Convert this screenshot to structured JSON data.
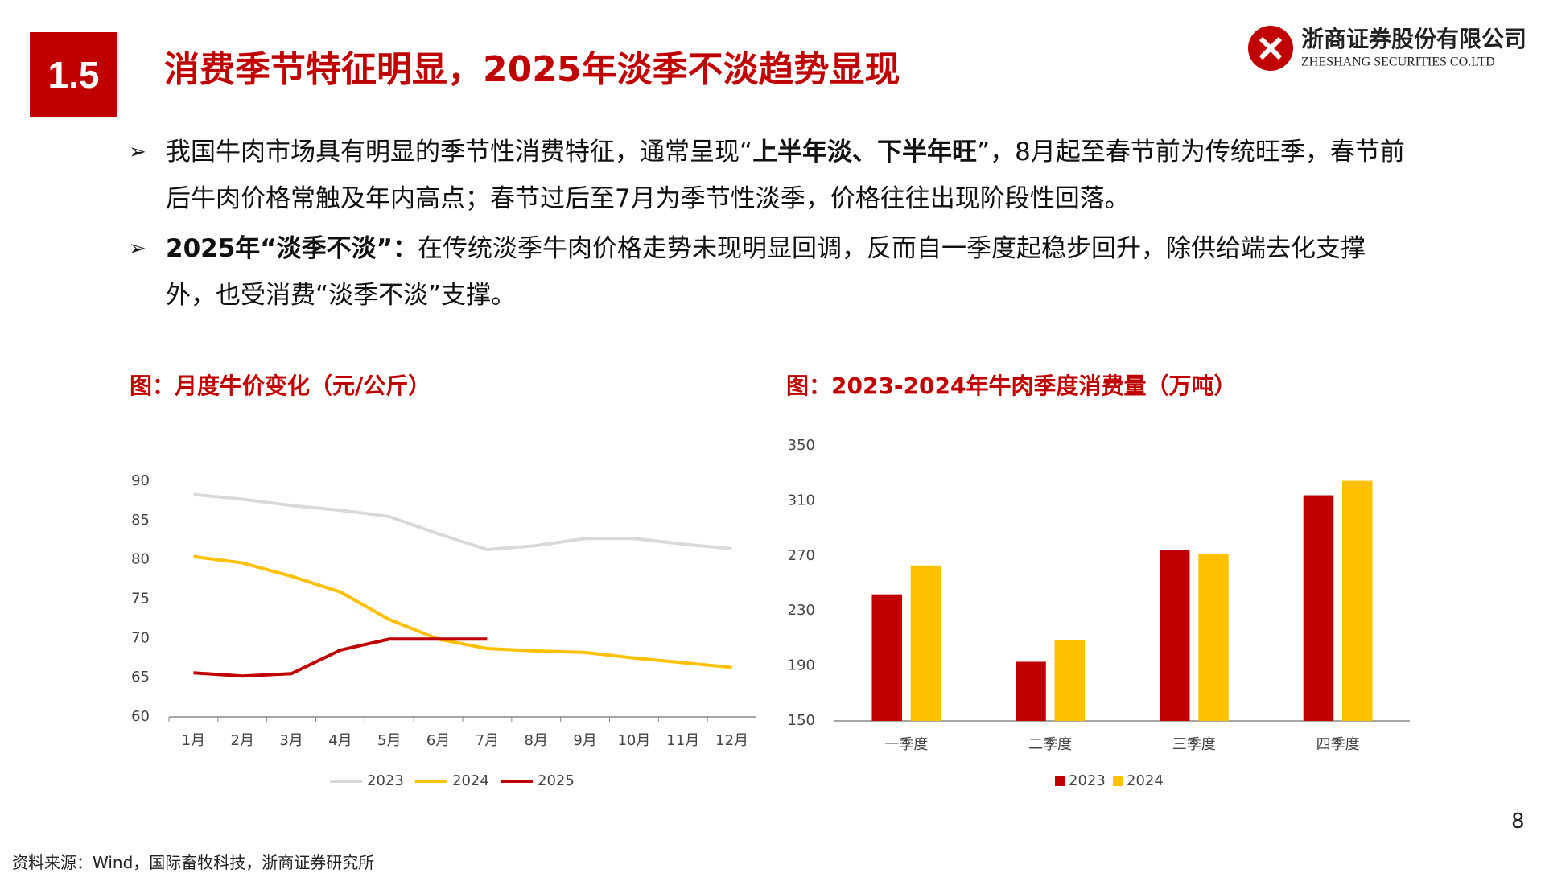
{
  "header": {
    "section": "1.5",
    "title": "消费季节特征明显，2025年淡季不淡趋势显现",
    "company": "浙商证券股份有限公司",
    "company_en": "ZHESHANG SECURITIES CO.LTD"
  },
  "bullets": [
    [
      {
        "text": "我国牛肉市场具有明显的季节性消费特征，通常呈现“"
      },
      {
        "text": "上半年淡、下半年旺",
        "bold": true
      },
      {
        "text": "”，8月起至春节前为传统旺季，春节前后牛肉价格常触及年内高点；春节过后至7月为季节性淡季，价格往往出现阶段性回落。"
      }
    ],
    [
      {
        "text": "2025年“淡季不淡”：",
        "bold": true
      },
      {
        "text": "在传统淡季牛肉价格走势未现明显回调，反而自一季度起稳步回升，除供给端去化支撑外，也受消费“淡季不淡”支撑。"
      }
    ]
  ],
  "chart_data": [
    {
      "type": "line",
      "title": "图：月度牛价变化（元/公斤）",
      "categories": [
        "1月",
        "2月",
        "3月",
        "4月",
        "5月",
        "6月",
        "7月",
        "8月",
        "9月",
        "10月",
        "11月",
        "12月"
      ],
      "series": [
        {
          "name": "2023",
          "color": "#d9d9d9",
          "values": [
            88.3,
            87.7,
            86.9,
            86.3,
            85.5,
            83.3,
            81.3,
            81.8,
            82.7,
            82.7,
            82.0,
            81.4
          ]
        },
        {
          "name": "2024",
          "color": "#ffc000",
          "values": [
            80.4,
            79.6,
            77.9,
            75.9,
            72.4,
            69.9,
            68.7,
            68.4,
            68.2,
            67.5,
            66.9,
            66.3
          ]
        },
        {
          "name": "2025",
          "color": "#c00000",
          "values": [
            65.6,
            65.2,
            65.5,
            68.5,
            69.9,
            69.9,
            69.9,
            null,
            null,
            null,
            null,
            null
          ]
        }
      ],
      "ylim": [
        60,
        90
      ],
      "yticks": [
        60,
        65,
        70,
        75,
        80,
        85,
        90
      ],
      "grid": false,
      "legend": "bottom"
    },
    {
      "type": "bar",
      "title": "图：2023-2024年牛肉季度消费量（万吨）",
      "categories": [
        "一季度",
        "二季度",
        "三季度",
        "四季度"
      ],
      "series": [
        {
          "name": "2023",
          "color": "#c00000",
          "values": [
            242,
            193,
            274.5,
            314
          ]
        },
        {
          "name": "2024",
          "color": "#ffc000",
          "values": [
            263,
            208.6,
            271.6,
            324.5
          ]
        }
      ],
      "ylim": [
        150,
        350
      ],
      "yticks": [
        150,
        190,
        230,
        270,
        310,
        350
      ],
      "grid": false,
      "legend": "bottom"
    }
  ],
  "page_number": "8",
  "source": "资料来源：Wind，国际畜牧科技，浙商证券研究所"
}
